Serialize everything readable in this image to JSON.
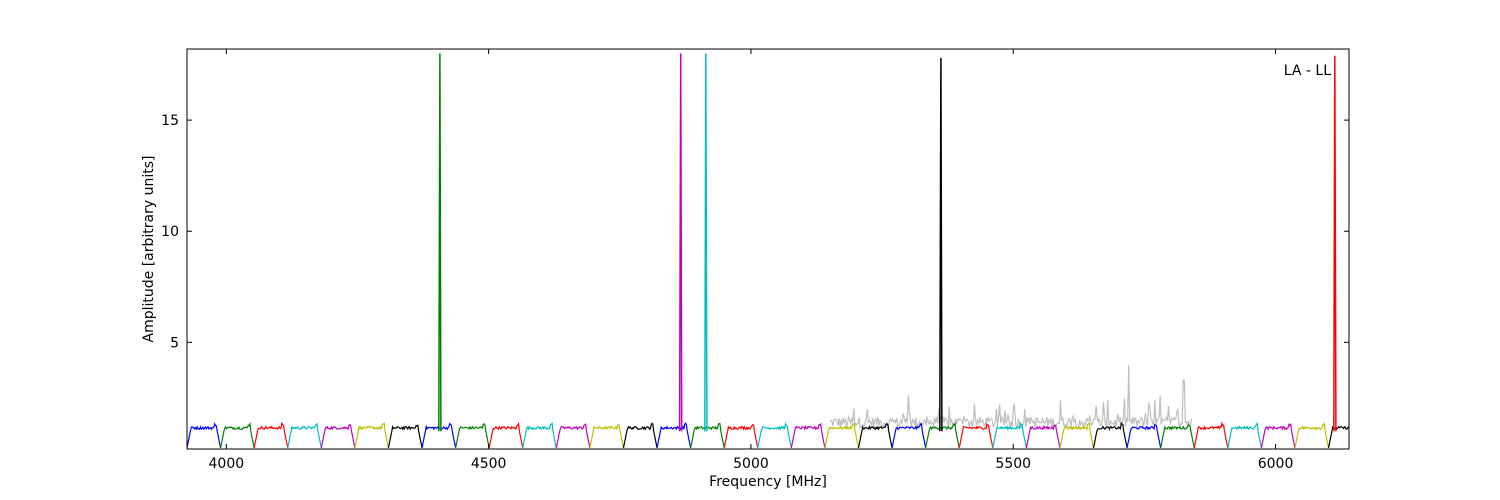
{
  "chart_data": {
    "type": "line",
    "title": "",
    "xlabel": "Frequency [MHz]",
    "ylabel": "Amplitude [arbitrary units]",
    "annotation": "LA - LL",
    "xlim": [
      3925,
      6140
    ],
    "ylim": [
      0.2,
      18.2
    ],
    "xticks": [
      4000,
      4500,
      5000,
      5500,
      6000
    ],
    "yticks": [
      5,
      10,
      15
    ],
    "grid": false,
    "legend": "none",
    "band_width_mhz": 64,
    "spw_colors": [
      "#0000ff",
      "#008000",
      "#ff0000",
      "#00bfbf",
      "#bf00bf",
      "#bfbf00",
      "#000000"
    ],
    "background_series": {
      "color": "#bfbfbf",
      "x_range": [
        5150,
        5840
      ],
      "level": 1.4,
      "peaks": [
        {
          "x": 5300,
          "y": 2.6
        },
        {
          "x": 5500,
          "y": 2.0
        },
        {
          "x": 5590,
          "y": 2.4
        },
        {
          "x": 5680,
          "y": 2.4
        },
        {
          "x": 5720,
          "y": 4.0
        },
        {
          "x": 5780,
          "y": 2.6
        },
        {
          "x": 5825,
          "y": 3.3
        }
      ]
    },
    "spikes": [
      {
        "x": 4407,
        "y": 18.0,
        "color": "#008000"
      },
      {
        "x": 4866,
        "y": 18.0,
        "color": "#bf00bf"
      },
      {
        "x": 4914,
        "y": 18.0,
        "color": "#00bfbf"
      },
      {
        "x": 5362,
        "y": 17.8,
        "color": "#000000"
      },
      {
        "x": 6113,
        "y": 17.9,
        "color": "#ff0000"
      }
    ]
  }
}
